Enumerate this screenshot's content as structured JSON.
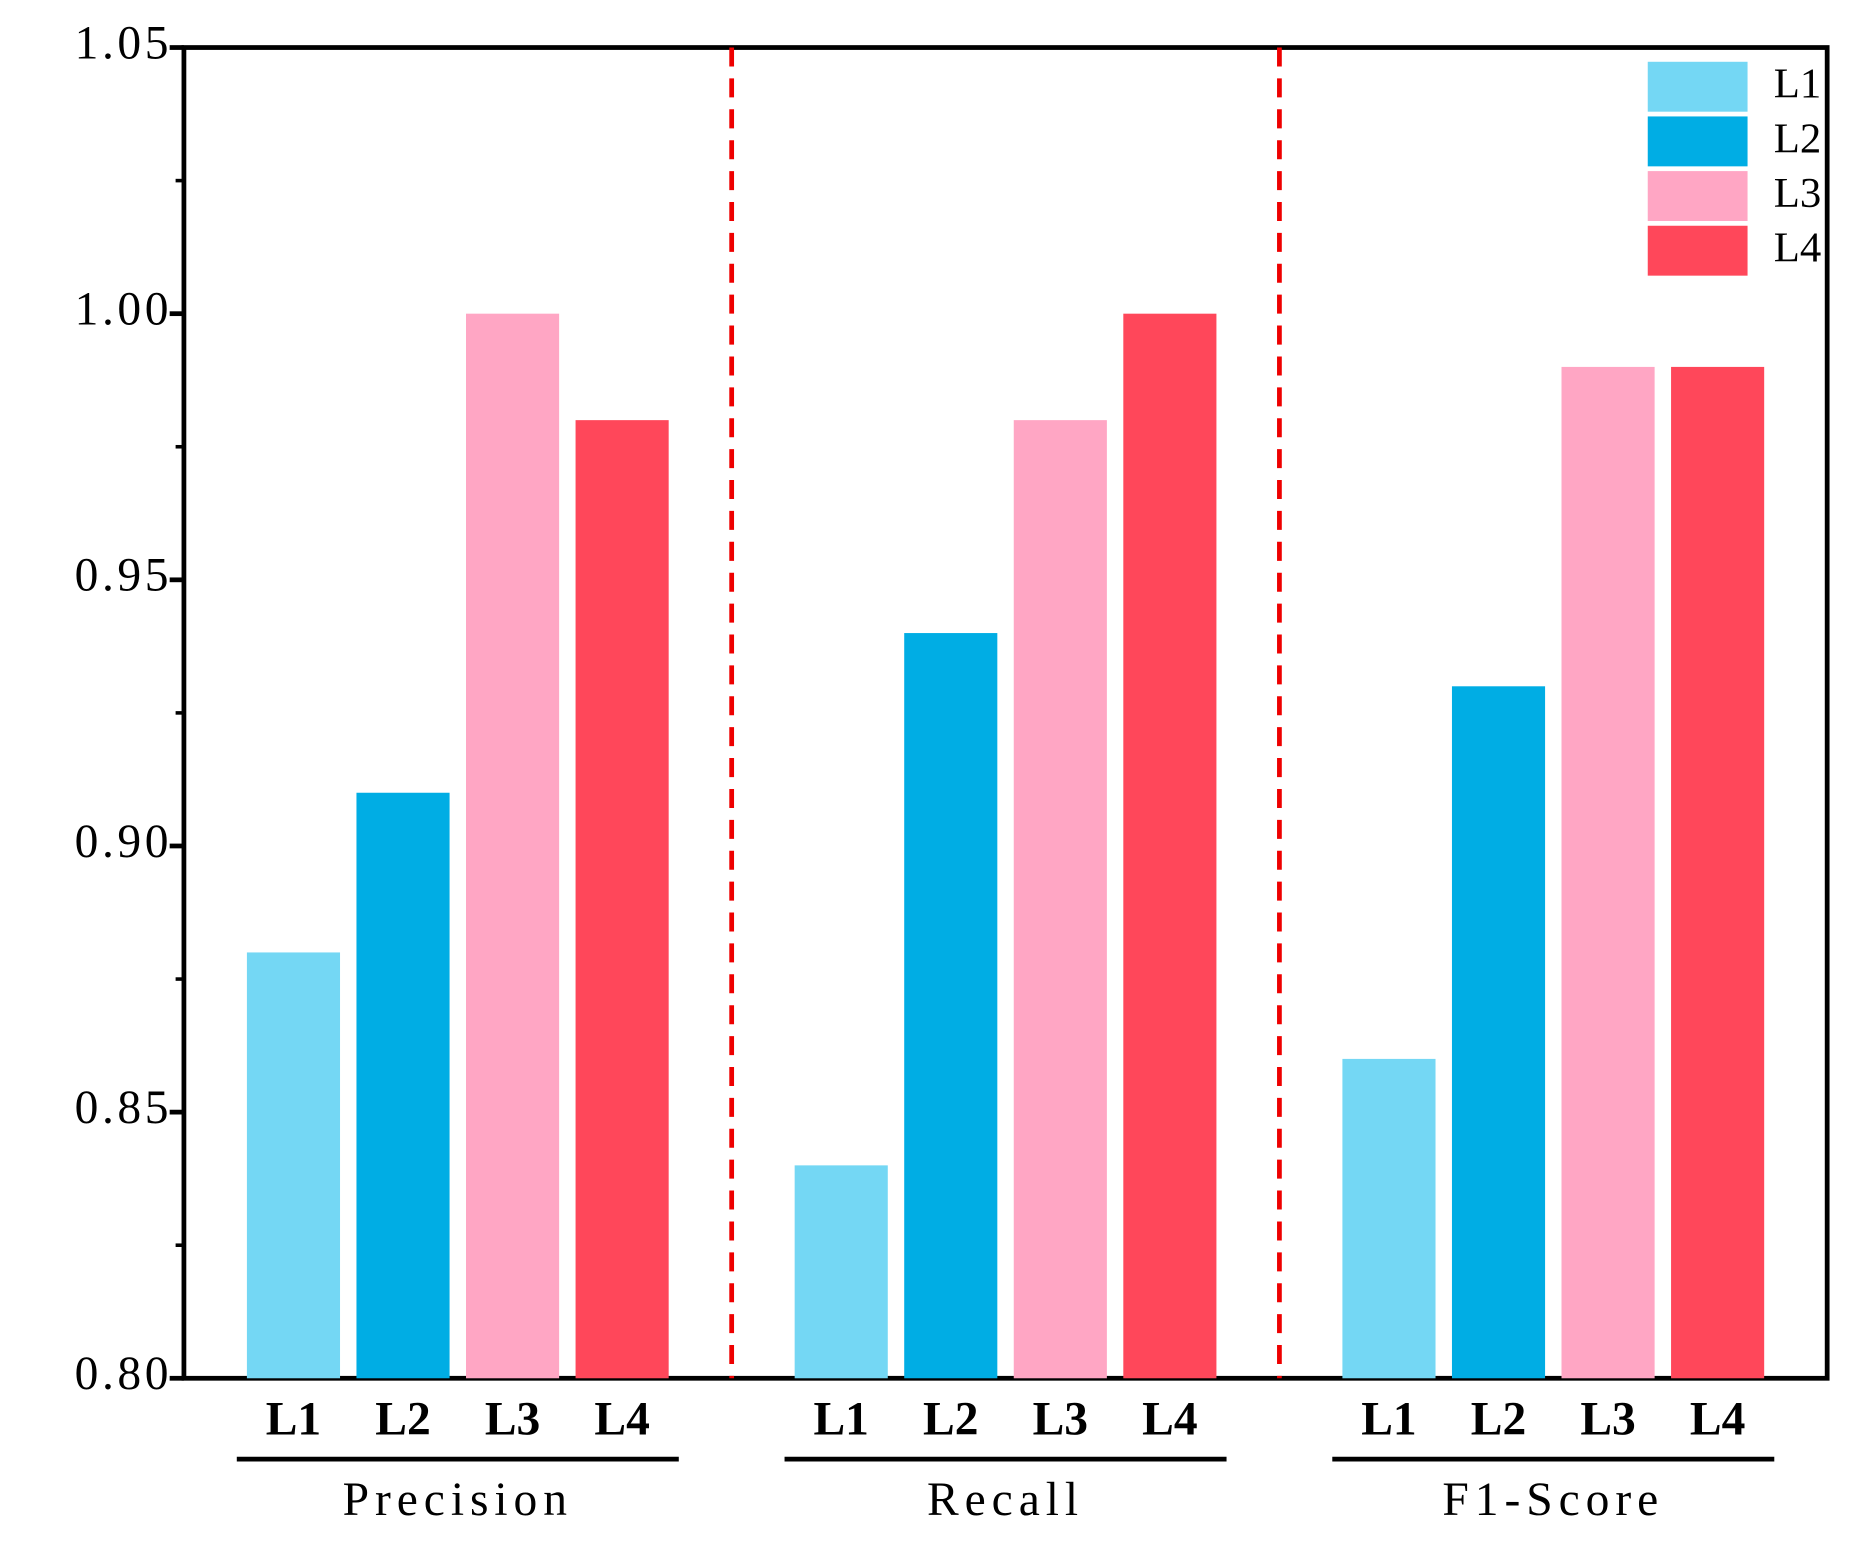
{
  "chart_data": {
    "type": "grouped_bar",
    "categories": [
      "Precision",
      "Recall",
      "F1-Score"
    ],
    "series": [
      {
        "name": "L1",
        "color": "#74d7f4",
        "values": [
          0.88,
          0.84,
          0.86
        ]
      },
      {
        "name": "L2",
        "color": "#00ade4",
        "values": [
          0.91,
          0.94,
          0.93
        ]
      },
      {
        "name": "L3",
        "color": "#ffa6c4",
        "values": [
          1.0,
          0.98,
          0.99
        ]
      },
      {
        "name": "L4",
        "color": "#ff475a",
        "values": [
          0.98,
          1.0,
          0.99
        ]
      }
    ],
    "ylim": [
      0.8,
      1.05
    ],
    "yticks": [
      {
        "value": 0.8,
        "label": "0.80"
      },
      0.85,
      {
        "value": 0.9,
        "label": "0.90"
      },
      0.95,
      {
        "value": 1.0,
        "label": "1.00"
      },
      1.05
    ],
    "yminorticks": [
      0.825,
      0.875,
      0.925,
      0.975,
      1.025
    ],
    "legend": "upper right"
  }
}
